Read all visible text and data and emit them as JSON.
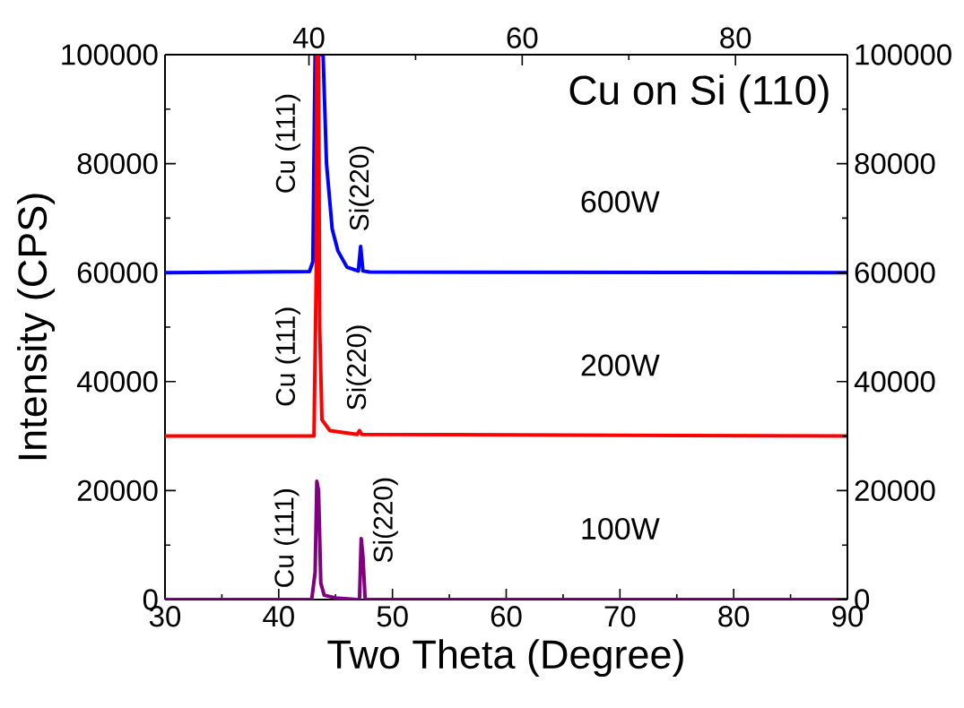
{
  "chart_data": {
    "type": "line",
    "title": "Cu on Si (110)",
    "xlabel": "Two Theta (Degree)",
    "ylabel": "Intensity (CPS)",
    "xlim": [
      30,
      90
    ],
    "xticks": [
      30,
      40,
      50,
      60,
      70,
      80,
      90
    ],
    "ylim": [
      0,
      100000
    ],
    "yticks": [
      0,
      20000,
      40000,
      60000,
      80000,
      100000
    ],
    "y2lim": [
      0,
      100000
    ],
    "y2ticks": [
      0,
      20000,
      40000,
      60000,
      80000,
      100000
    ],
    "x2lim": [
      26.5,
      90.5
    ],
    "x2ticks": [
      40,
      60,
      80
    ],
    "grid": false,
    "legend": false,
    "marker": "none",
    "line_style": "solid",
    "series": [
      {
        "name": "600W",
        "color": "#0000ff",
        "x": [
          30,
          42.7,
          43.0,
          43.2,
          43.9,
          44.2,
          44.7,
          45.2,
          46.0,
          47.0,
          47.2,
          47.4,
          48,
          90
        ],
        "values": [
          60000,
          60200,
          62000,
          100000,
          100000,
          80000,
          68000,
          64000,
          61000,
          60300,
          64800,
          60300,
          60100,
          60000
        ]
      },
      {
        "name": "200W",
        "color": "#ff0000",
        "x": [
          30,
          43.1,
          43.3,
          43.35,
          43.5,
          43.6,
          43.8,
          44.5,
          46.9,
          47.1,
          47.3,
          90
        ],
        "values": [
          30000,
          30000,
          60000,
          100000,
          100000,
          50000,
          33000,
          31000,
          30300,
          31000,
          30300,
          30000
        ]
      },
      {
        "name": "100W",
        "color": "#800080",
        "x": [
          30,
          42.9,
          43.2,
          43.35,
          43.5,
          43.7,
          44.0,
          45,
          46.9,
          47.1,
          47.25,
          47.4,
          47.6,
          48,
          90
        ],
        "values": [
          0,
          0,
          5000,
          21700,
          20000,
          3000,
          800,
          300,
          0,
          0,
          11200,
          8000,
          0,
          0,
          0
        ]
      }
    ],
    "annotations": [
      "Cu (111)",
      "Si(220)",
      "Cu (111)",
      "Si(220)",
      "Cu (111)",
      "Si(220)"
    ]
  }
}
